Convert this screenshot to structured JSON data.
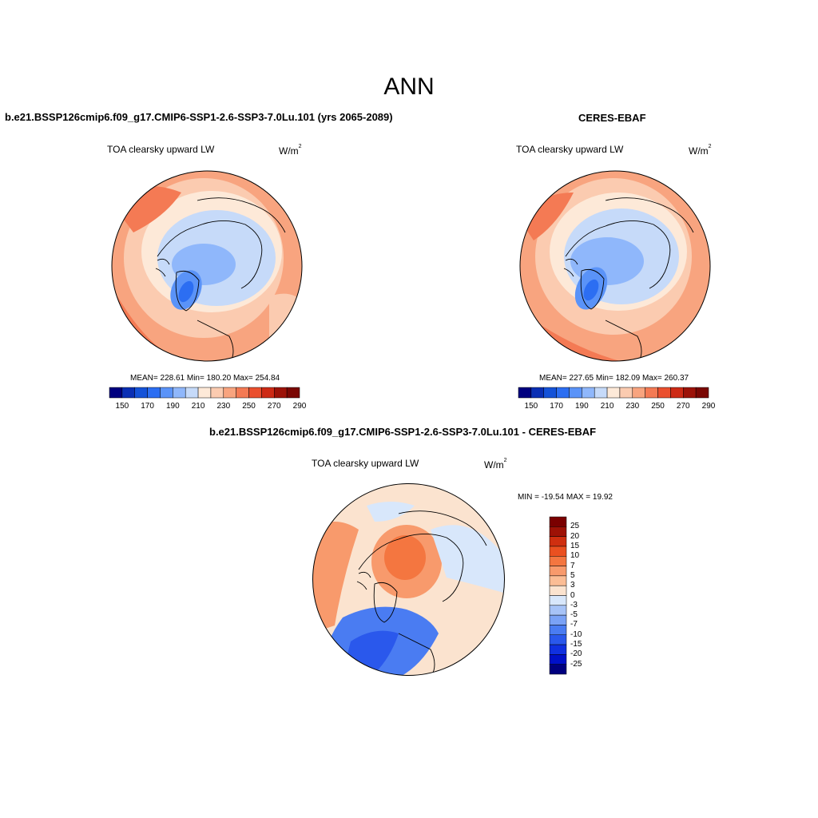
{
  "season": "ANN",
  "units_base": "W/m",
  "units_exp": "2",
  "colors": {
    "abs_scale": [
      "#00007f",
      "#0a2fb4",
      "#1452d8",
      "#2c6ef2",
      "#5a93f8",
      "#8fb7fb",
      "#c6daf9",
      "#fde9d8",
      "#fbcbb0",
      "#f8a47f",
      "#f47a54",
      "#ea4f2e",
      "#cd2a15",
      "#9c1208",
      "#7a0703"
    ],
    "diff_scale": [
      "#00007f",
      "#0010c8",
      "#1030e0",
      "#2a58ec",
      "#4a7cf2",
      "#7aa2f6",
      "#a7c3f7",
      "#d8e7fb",
      "#fbe3cf",
      "#fbbd95",
      "#f89a6c",
      "#f47640",
      "#ea5020",
      "#cf2f10",
      "#9e1206",
      "#7a0000"
    ],
    "coast": "#000000"
  },
  "panels": {
    "model": {
      "title": "b.e21.BSSP126cmip6.f09_g17.CMIP6-SSP1-2.6-SSP3-7.0Lu.101 (yrs 2065-2089)",
      "variable": "TOA clearsky upward LW",
      "stats": "MEAN= 228.61  Min= 180.20  Max= 254.84",
      "tick_labels": [
        "150",
        "170",
        "190",
        "210",
        "230",
        "250",
        "270",
        "290"
      ]
    },
    "obs": {
      "title": "CERES-EBAF",
      "variable": "TOA clearsky upward LW",
      "stats": "MEAN= 227.65  Min= 182.09  Max= 260.37",
      "tick_labels": [
        "150",
        "170",
        "190",
        "210",
        "230",
        "250",
        "270",
        "290"
      ]
    },
    "diff": {
      "title": "b.e21.BSSP126cmip6.f09_g17.CMIP6-SSP1-2.6-SSP3-7.0Lu.101 - CERES-EBAF",
      "variable": "TOA clearsky upward LW",
      "minmax": "MIN = -19.54 MAX =  19.92",
      "tick_labels": [
        "25",
        "20",
        "15",
        "10",
        "7",
        "5",
        "3",
        "0",
        "-3",
        "-5",
        "-7",
        "-10",
        "-15",
        "-20",
        "-25"
      ]
    }
  }
}
